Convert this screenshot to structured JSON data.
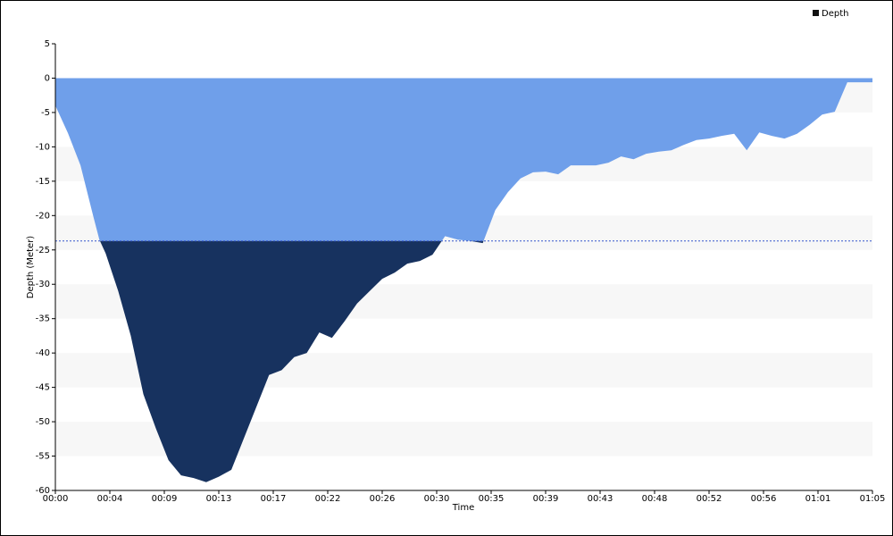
{
  "chart_data": {
    "type": "area",
    "x_label": "Time",
    "y_label": "Depth (Meter)",
    "x": [
      0,
      1,
      2,
      3,
      3.5,
      4,
      5,
      6,
      7,
      8,
      9,
      10,
      11,
      12,
      13,
      14,
      15,
      16,
      17,
      18,
      19,
      20,
      21,
      22,
      23,
      24,
      25,
      26,
      27,
      28,
      29,
      30,
      31,
      32,
      33,
      34,
      35,
      36,
      37,
      38,
      39,
      40,
      41,
      42,
      43,
      44,
      45,
      46,
      47,
      48,
      49,
      50,
      51,
      52,
      53,
      54,
      55,
      56,
      57,
      58,
      59,
      60,
      61,
      62,
      63,
      64,
      65
    ],
    "series": [
      {
        "name": "Depth",
        "color": "#6f9fea",
        "threshold_color": "#17325f",
        "legend_color": "#111111",
        "values": [
          -4,
          -8,
          -12.7,
          -20,
          -23.5,
          -25.5,
          -31,
          -37.5,
          -46,
          -51,
          -55.6,
          -57.8,
          -58.2,
          -58.8,
          -58,
          -57,
          -52.4,
          -47.8,
          -43.2,
          -42.5,
          -40.6,
          -40,
          -37,
          -37.8,
          -35.4,
          -32.8,
          -31,
          -29.2,
          -28.3,
          -27,
          -26.6,
          -25.7,
          -23,
          -23.5,
          -23.7,
          -24,
          -19.2,
          -16.6,
          -14.6,
          -13.7,
          -13.6,
          -14,
          -12.7,
          -12.7,
          -12.7,
          -12.3,
          -11.4,
          -11.8,
          -11,
          -10.7,
          -10.5,
          -9.7,
          -9,
          -8.8,
          -8.4,
          -8.1,
          -10.5,
          -7.9,
          -8.4,
          -8.8,
          -8.1,
          -6.8,
          -5.3,
          -4.9,
          -0.6,
          -0.6,
          -0.6
        ]
      }
    ],
    "threshold": -23.7,
    "xlim": [
      0,
      65
    ],
    "xticks": [
      {
        "value": 0,
        "label": "00:00"
      },
      {
        "value": 4.333,
        "label": "00:04"
      },
      {
        "value": 8.667,
        "label": "00:09"
      },
      {
        "value": 13,
        "label": "00:13"
      },
      {
        "value": 17.333,
        "label": "00:17"
      },
      {
        "value": 21.667,
        "label": "00:22"
      },
      {
        "value": 26,
        "label": "00:26"
      },
      {
        "value": 30.333,
        "label": "00:30"
      },
      {
        "value": 34.667,
        "label": "00:35"
      },
      {
        "value": 39,
        "label": "00:39"
      },
      {
        "value": 43.333,
        "label": "00:43"
      },
      {
        "value": 47.667,
        "label": "00:48"
      },
      {
        "value": 52,
        "label": "00:52"
      },
      {
        "value": 56.333,
        "label": "00:56"
      },
      {
        "value": 60.667,
        "label": "01:01"
      },
      {
        "value": 65,
        "label": "01:05"
      }
    ],
    "ylim": [
      -60,
      5
    ],
    "yticks": [
      5,
      0,
      -5,
      -10,
      -15,
      -20,
      -25,
      -30,
      -35,
      -40,
      -45,
      -50,
      -55,
      -60
    ],
    "grid": "bands",
    "legend": "top-right"
  }
}
